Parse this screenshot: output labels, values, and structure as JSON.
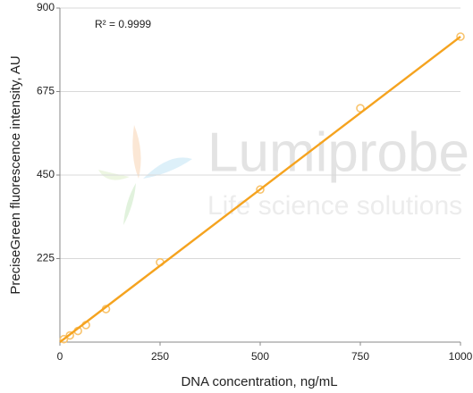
{
  "chart_data": {
    "type": "scatter",
    "xlabel": "DNA concentration, ng/mL",
    "ylabel": "PreciseGreen fluorescence intensity, AU",
    "annotation": "R² = 0.9999",
    "watermark": [
      "Lumiprobe",
      "Life science solutions"
    ],
    "x": [
      10,
      25,
      45,
      65,
      115,
      250,
      500,
      750,
      1000
    ],
    "series": [
      {
        "color": "#f8c46e",
        "values": [
          8,
          18,
          30,
          46,
          89,
          215,
          411,
          630,
          823
        ]
      }
    ],
    "fit": {
      "x": [
        0,
        1000
      ],
      "values": [
        0,
        823
      ],
      "color": "#f5a31f"
    },
    "xlim": [
      0,
      1000
    ],
    "xticks": [
      0,
      250,
      500,
      750,
      1000
    ],
    "ylim": [
      0,
      900
    ],
    "yticks": [
      225,
      450,
      675,
      900
    ],
    "grid": true
  }
}
